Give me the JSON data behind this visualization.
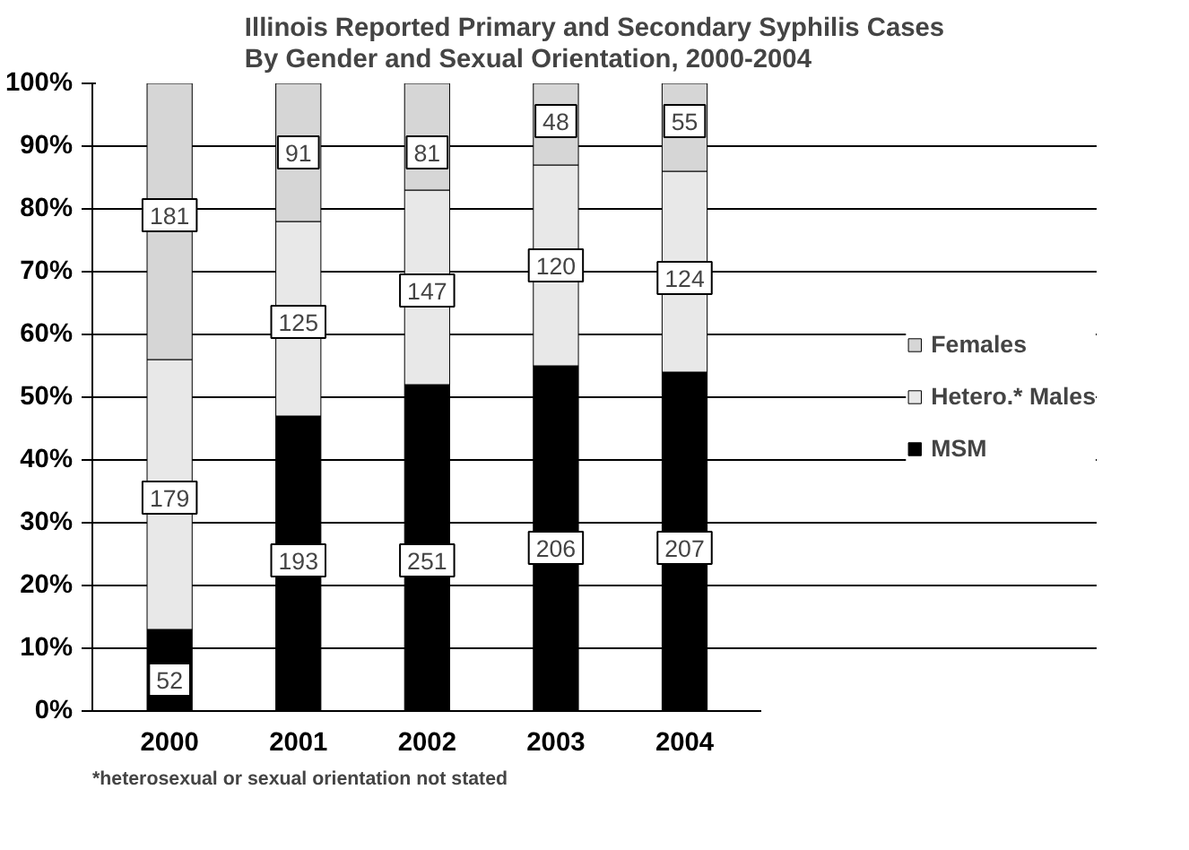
{
  "chart_data": {
    "type": "bar",
    "stacked": true,
    "title": "Illinois Reported Primary and Secondary Syphilis Cases\nBy Gender and Sexual Orientation, 2000-2004",
    "categories": [
      "2000",
      "2001",
      "2002",
      "2003",
      "2004"
    ],
    "series": [
      {
        "name": "MSM",
        "color": "#000000",
        "values": [
          13,
          47,
          52,
          55,
          54
        ]
      },
      {
        "name": "Hetero.* Males",
        "color": "#e8e8e8",
        "values": [
          43,
          31,
          31,
          32,
          32
        ]
      },
      {
        "name": "Females",
        "color": "#d6d6d6",
        "values": [
          44,
          22,
          17,
          13,
          14
        ]
      }
    ],
    "ylim": [
      0,
      100
    ],
    "yticks": [
      {
        "value": 0,
        "label": "0%"
      },
      {
        "value": 10,
        "label": "10%"
      },
      {
        "value": 20,
        "label": "20%"
      },
      {
        "value": 30,
        "label": "30%"
      },
      {
        "value": 40,
        "label": "40%"
      },
      {
        "value": 50,
        "label": "50%"
      },
      {
        "value": 60,
        "label": "60%"
      },
      {
        "value": 70,
        "label": "70%"
      },
      {
        "value": 80,
        "label": "80%"
      },
      {
        "value": 90,
        "label": "90%"
      },
      {
        "value": 100,
        "label": "100%"
      }
    ],
    "grid": "y",
    "legend": "right",
    "annotations": [
      {
        "text": "52",
        "x": "2000",
        "y": 5
      },
      {
        "text": "179",
        "x": "2000",
        "y": 34
      },
      {
        "text": "181",
        "x": "2000",
        "y": 79
      },
      {
        "text": "193",
        "x": "2001",
        "y": 24
      },
      {
        "text": "125",
        "x": "2001",
        "y": 62
      },
      {
        "text": "91",
        "x": "2001",
        "y": 89
      },
      {
        "text": "251",
        "x": "2002",
        "y": 24
      },
      {
        "text": "147",
        "x": "2002",
        "y": 67
      },
      {
        "text": "81",
        "x": "2002",
        "y": 89
      },
      {
        "text": "206",
        "x": "2003",
        "y": 26
      },
      {
        "text": "120",
        "x": "2003",
        "y": 71
      },
      {
        "text": "48",
        "x": "2003",
        "y": 94
      },
      {
        "text": "207",
        "x": "2004",
        "y": 26
      },
      {
        "text": "124",
        "x": "2004",
        "y": 69
      },
      {
        "text": "55",
        "x": "2004",
        "y": 94
      },
      "*heterosexual or sexual orientation not stated"
    ]
  }
}
